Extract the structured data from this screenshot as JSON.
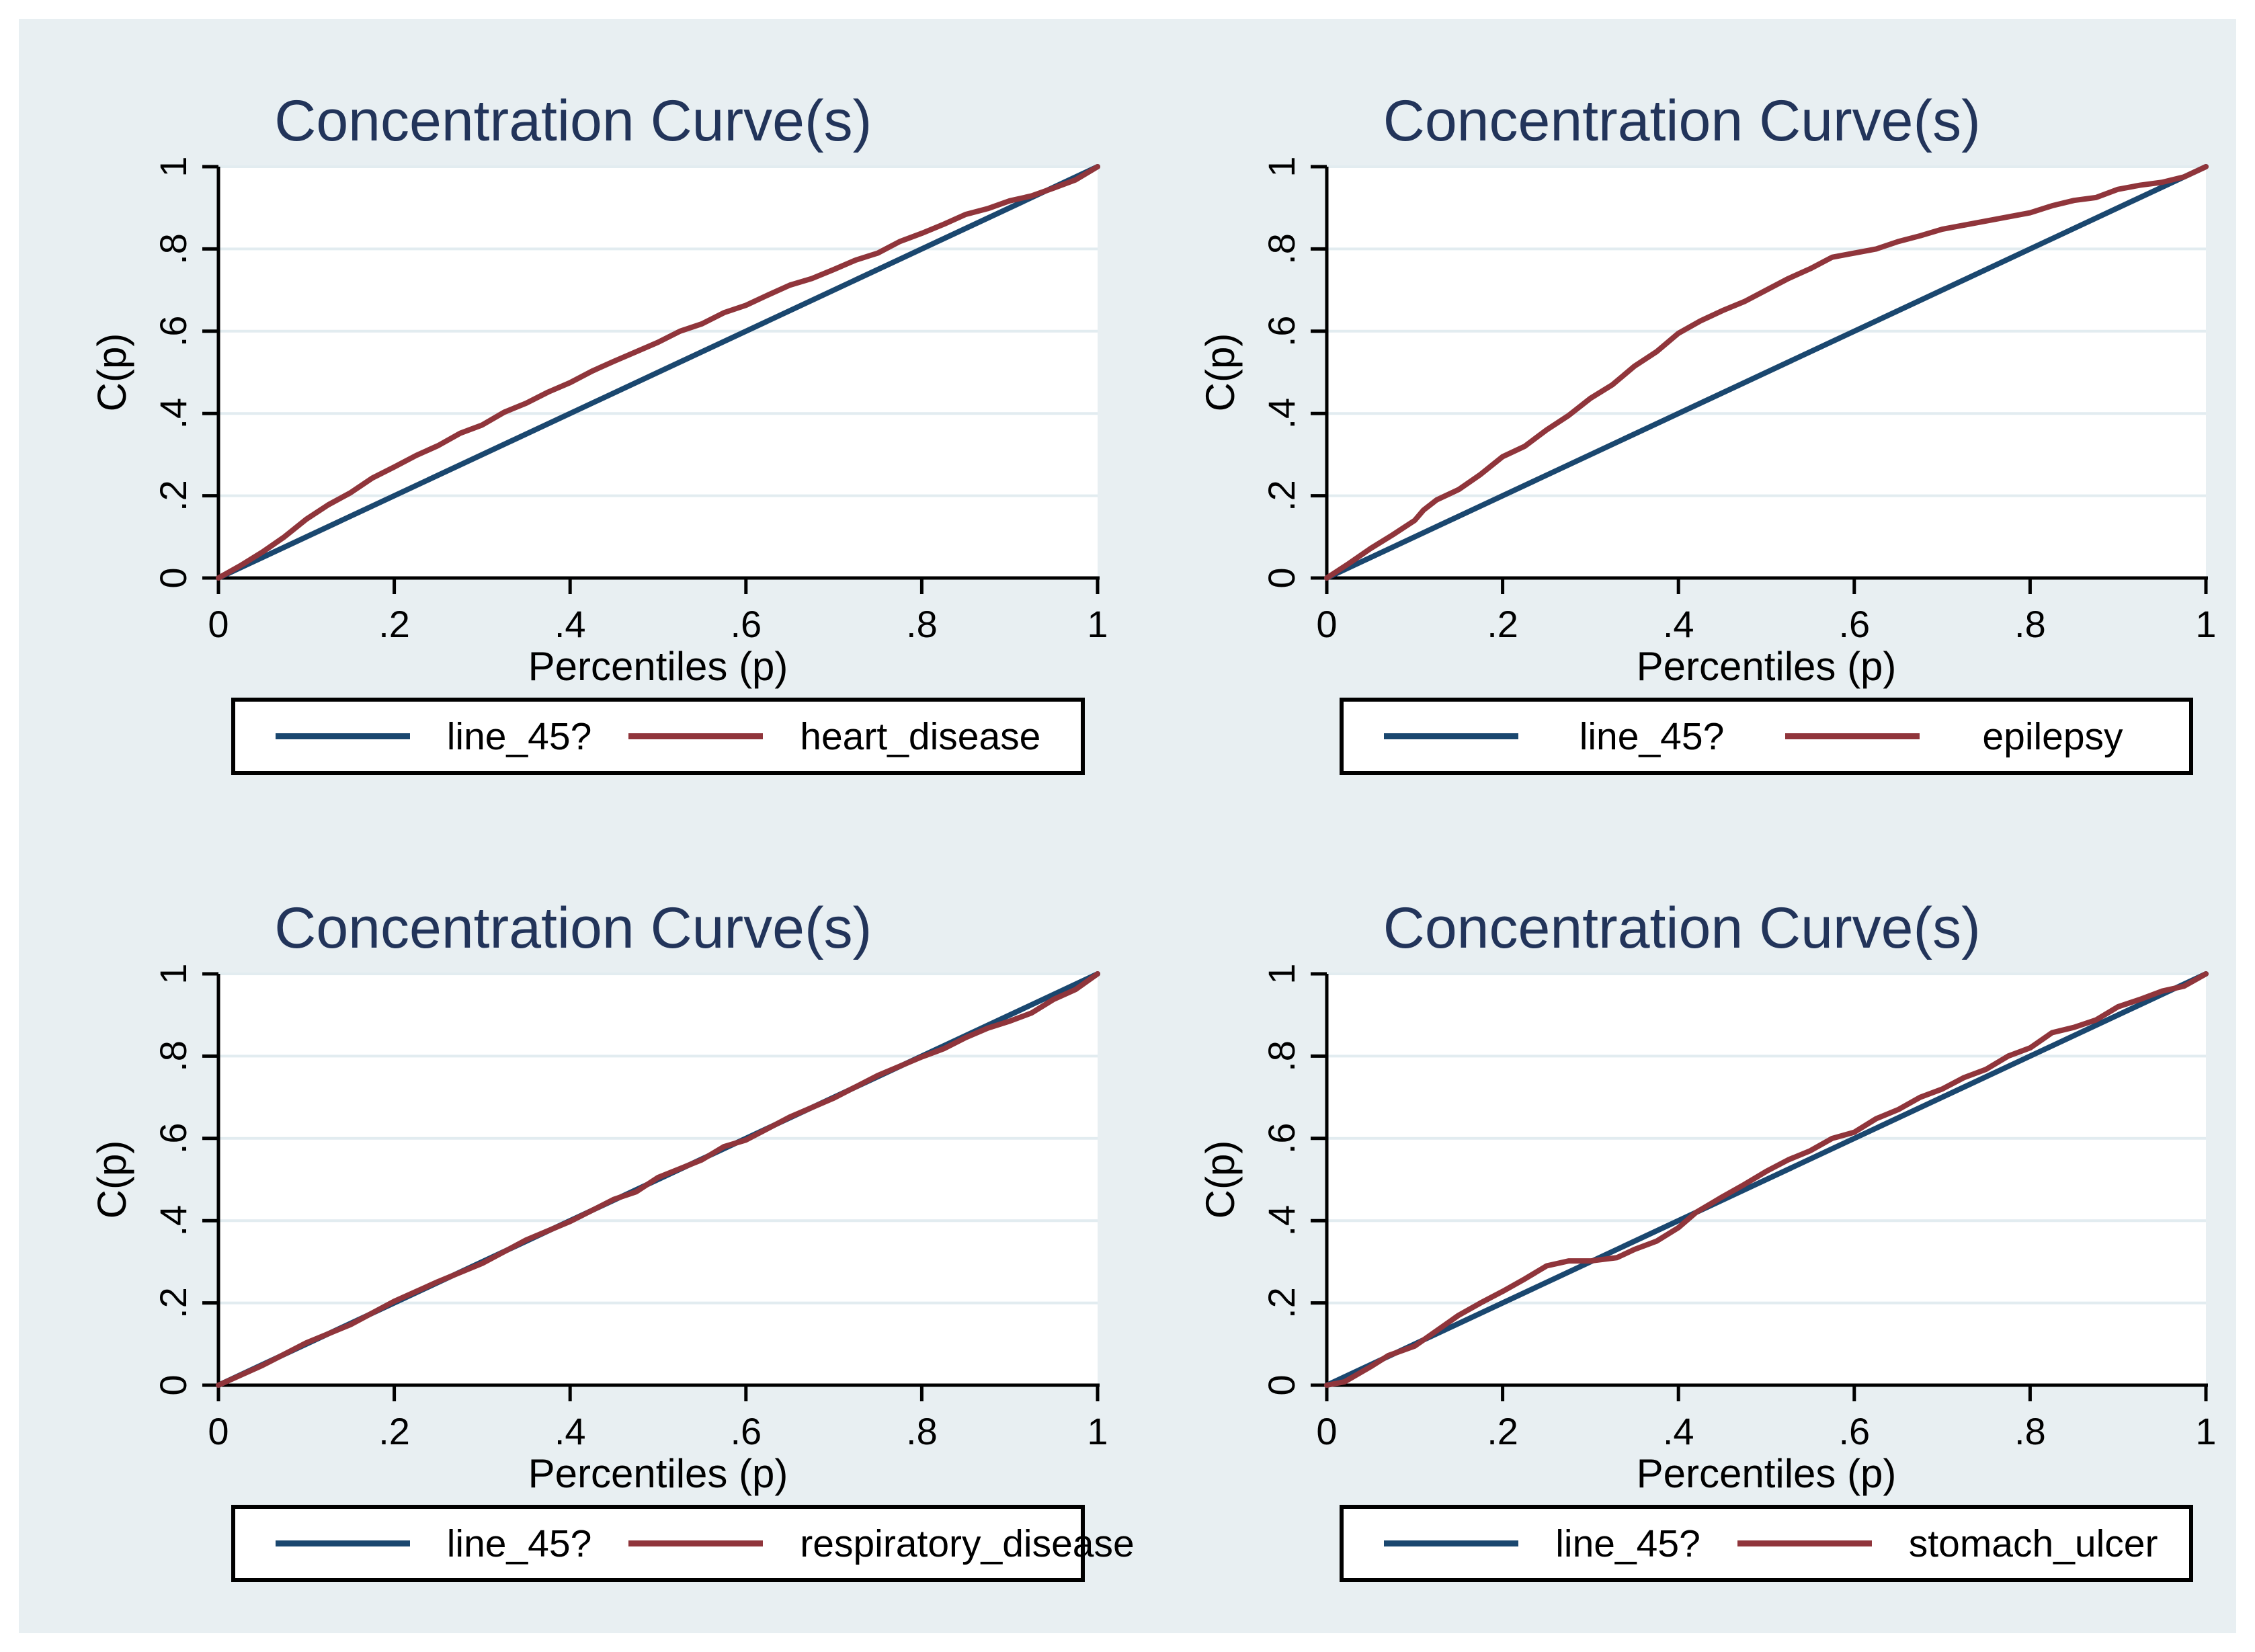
{
  "figure": {
    "canvas_background": "#e8eff2",
    "page_background": "#ffffff",
    "plot_background": "#ffffff",
    "grid_color": "#e2ecf0",
    "axis_color": "#000000",
    "title_color": "#22345a",
    "legend_border_color": "#000000"
  },
  "chart_data": [
    {
      "type": "line",
      "title": "Concentration Curve(s)",
      "xlabel": "Percentiles (p)",
      "ylabel": "C(p)",
      "xlim": [
        0,
        1
      ],
      "ylim": [
        0,
        1
      ],
      "xticks": [
        "0",
        ".2",
        ".4",
        ".6",
        ".8",
        "1"
      ],
      "yticks": [
        "0",
        ".2",
        ".4",
        ".6",
        ".8",
        "1"
      ],
      "grid": "horizontal",
      "legend_position": "below",
      "series": [
        {
          "name": "line_45?",
          "color": "#1a476f",
          "points": [
            [
              0,
              0
            ],
            [
              1,
              1
            ]
          ]
        },
        {
          "name": "heart_disease",
          "color": "#90353b",
          "points": [
            [
              0,
              0
            ],
            [
              0.025,
              0.03
            ],
            [
              0.05,
              0.063
            ],
            [
              0.075,
              0.1
            ],
            [
              0.1,
              0.143
            ],
            [
              0.125,
              0.178
            ],
            [
              0.15,
              0.207
            ],
            [
              0.175,
              0.243
            ],
            [
              0.2,
              0.27
            ],
            [
              0.225,
              0.298
            ],
            [
              0.25,
              0.322
            ],
            [
              0.275,
              0.352
            ],
            [
              0.3,
              0.372
            ],
            [
              0.325,
              0.403
            ],
            [
              0.35,
              0.425
            ],
            [
              0.375,
              0.452
            ],
            [
              0.4,
              0.475
            ],
            [
              0.425,
              0.503
            ],
            [
              0.45,
              0.527
            ],
            [
              0.475,
              0.55
            ],
            [
              0.5,
              0.573
            ],
            [
              0.525,
              0.6
            ],
            [
              0.55,
              0.618
            ],
            [
              0.575,
              0.645
            ],
            [
              0.6,
              0.663
            ],
            [
              0.625,
              0.688
            ],
            [
              0.65,
              0.712
            ],
            [
              0.675,
              0.728
            ],
            [
              0.7,
              0.75
            ],
            [
              0.725,
              0.773
            ],
            [
              0.75,
              0.79
            ],
            [
              0.775,
              0.818
            ],
            [
              0.8,
              0.838
            ],
            [
              0.825,
              0.86
            ],
            [
              0.85,
              0.884
            ],
            [
              0.875,
              0.898
            ],
            [
              0.9,
              0.917
            ],
            [
              0.925,
              0.929
            ],
            [
              0.95,
              0.948
            ],
            [
              0.975,
              0.968
            ],
            [
              1,
              1
            ]
          ]
        }
      ]
    },
    {
      "type": "line",
      "title": "Concentration Curve(s)",
      "xlabel": "Percentiles (p)",
      "ylabel": "C(p)",
      "xlim": [
        0,
        1
      ],
      "ylim": [
        0,
        1
      ],
      "xticks": [
        "0",
        ".2",
        ".4",
        ".6",
        ".8",
        "1"
      ],
      "yticks": [
        "0",
        ".2",
        ".4",
        ".6",
        ".8",
        "1"
      ],
      "grid": "horizontal",
      "legend_position": "below",
      "series": [
        {
          "name": "line_45?",
          "color": "#1a476f",
          "points": [
            [
              0,
              0
            ],
            [
              1,
              1
            ]
          ]
        },
        {
          "name": "epilepsy",
          "color": "#90353b",
          "points": [
            [
              0,
              0
            ],
            [
              0.025,
              0.035
            ],
            [
              0.05,
              0.072
            ],
            [
              0.075,
              0.105
            ],
            [
              0.1,
              0.14
            ],
            [
              0.11,
              0.165
            ],
            [
              0.125,
              0.19
            ],
            [
              0.15,
              0.215
            ],
            [
              0.175,
              0.252
            ],
            [
              0.2,
              0.295
            ],
            [
              0.225,
              0.32
            ],
            [
              0.25,
              0.36
            ],
            [
              0.275,
              0.395
            ],
            [
              0.3,
              0.437
            ],
            [
              0.325,
              0.47
            ],
            [
              0.35,
              0.515
            ],
            [
              0.375,
              0.55
            ],
            [
              0.4,
              0.595
            ],
            [
              0.425,
              0.625
            ],
            [
              0.45,
              0.65
            ],
            [
              0.475,
              0.672
            ],
            [
              0.5,
              0.7
            ],
            [
              0.525,
              0.728
            ],
            [
              0.55,
              0.752
            ],
            [
              0.575,
              0.78
            ],
            [
              0.6,
              0.79
            ],
            [
              0.625,
              0.8
            ],
            [
              0.65,
              0.818
            ],
            [
              0.675,
              0.832
            ],
            [
              0.7,
              0.848
            ],
            [
              0.725,
              0.858
            ],
            [
              0.75,
              0.868
            ],
            [
              0.775,
              0.878
            ],
            [
              0.8,
              0.888
            ],
            [
              0.825,
              0.905
            ],
            [
              0.85,
              0.918
            ],
            [
              0.875,
              0.925
            ],
            [
              0.9,
              0.945
            ],
            [
              0.925,
              0.955
            ],
            [
              0.95,
              0.962
            ],
            [
              0.975,
              0.975
            ],
            [
              1,
              1
            ]
          ]
        }
      ]
    },
    {
      "type": "line",
      "title": "Concentration Curve(s)",
      "xlabel": "Percentiles (p)",
      "ylabel": "C(p)",
      "xlim": [
        0,
        1
      ],
      "ylim": [
        0,
        1
      ],
      "xticks": [
        "0",
        ".2",
        ".4",
        ".6",
        ".8",
        "1"
      ],
      "yticks": [
        "0",
        ".2",
        ".4",
        ".6",
        ".8",
        "1"
      ],
      "grid": "horizontal",
      "legend_position": "below",
      "series": [
        {
          "name": "line_45?",
          "color": "#1a476f",
          "points": [
            [
              0,
              0
            ],
            [
              1,
              1
            ]
          ]
        },
        {
          "name": "respiratory_disease",
          "color": "#90353b",
          "points": [
            [
              0,
              0
            ],
            [
              0.05,
              0.048
            ],
            [
              0.1,
              0.103
            ],
            [
              0.15,
              0.147
            ],
            [
              0.2,
              0.204
            ],
            [
              0.25,
              0.252
            ],
            [
              0.3,
              0.296
            ],
            [
              0.35,
              0.353
            ],
            [
              0.4,
              0.398
            ],
            [
              0.45,
              0.452
            ],
            [
              0.475,
              0.47
            ],
            [
              0.5,
              0.505
            ],
            [
              0.55,
              0.548
            ],
            [
              0.575,
              0.58
            ],
            [
              0.6,
              0.596
            ],
            [
              0.65,
              0.652
            ],
            [
              0.7,
              0.698
            ],
            [
              0.75,
              0.753
            ],
            [
              0.8,
              0.798
            ],
            [
              0.825,
              0.818
            ],
            [
              0.85,
              0.845
            ],
            [
              0.875,
              0.868
            ],
            [
              0.9,
              0.885
            ],
            [
              0.925,
              0.905
            ],
            [
              0.95,
              0.938
            ],
            [
              0.975,
              0.962
            ],
            [
              1,
              1
            ]
          ]
        }
      ]
    },
    {
      "type": "line",
      "title": "Concentration Curve(s)",
      "xlabel": "Percentiles (p)",
      "ylabel": "C(p)",
      "xlim": [
        0,
        1
      ],
      "ylim": [
        0,
        1
      ],
      "xticks": [
        "0",
        ".2",
        ".4",
        ".6",
        ".8",
        "1"
      ],
      "yticks": [
        "0",
        ".2",
        ".4",
        ".6",
        ".8",
        "1"
      ],
      "grid": "horizontal",
      "legend_position": "below",
      "series": [
        {
          "name": "line_45?",
          "color": "#1a476f",
          "points": [
            [
              0,
              0
            ],
            [
              1,
              1
            ]
          ]
        },
        {
          "name": "stomach_ulcer",
          "color": "#90353b",
          "points": [
            [
              0,
              0
            ],
            [
              0.02,
              0.008
            ],
            [
              0.05,
              0.045
            ],
            [
              0.07,
              0.072
            ],
            [
              0.1,
              0.095
            ],
            [
              0.12,
              0.125
            ],
            [
              0.15,
              0.17
            ],
            [
              0.175,
              0.2
            ],
            [
              0.2,
              0.228
            ],
            [
              0.225,
              0.258
            ],
            [
              0.25,
              0.29
            ],
            [
              0.275,
              0.302
            ],
            [
              0.3,
              0.302
            ],
            [
              0.33,
              0.31
            ],
            [
              0.35,
              0.33
            ],
            [
              0.375,
              0.35
            ],
            [
              0.4,
              0.383
            ],
            [
              0.42,
              0.42
            ],
            [
              0.45,
              0.458
            ],
            [
              0.475,
              0.488
            ],
            [
              0.5,
              0.52
            ],
            [
              0.525,
              0.548
            ],
            [
              0.55,
              0.57
            ],
            [
              0.575,
              0.6
            ],
            [
              0.6,
              0.615
            ],
            [
              0.625,
              0.648
            ],
            [
              0.65,
              0.67
            ],
            [
              0.675,
              0.7
            ],
            [
              0.7,
              0.72
            ],
            [
              0.725,
              0.748
            ],
            [
              0.75,
              0.768
            ],
            [
              0.775,
              0.8
            ],
            [
              0.8,
              0.82
            ],
            [
              0.825,
              0.857
            ],
            [
              0.85,
              0.87
            ],
            [
              0.875,
              0.888
            ],
            [
              0.9,
              0.92
            ],
            [
              0.925,
              0.938
            ],
            [
              0.95,
              0.958
            ],
            [
              0.975,
              0.97
            ],
            [
              1,
              1
            ]
          ]
        }
      ]
    }
  ]
}
